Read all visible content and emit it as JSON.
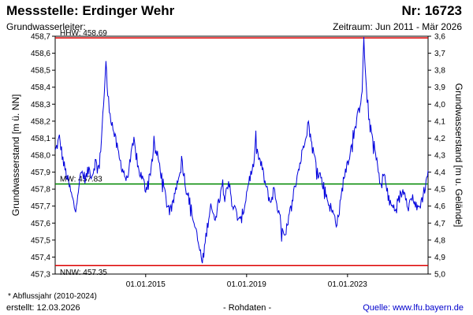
{
  "header": {
    "title": "Messstelle: Erdinger Wehr",
    "number": "Nr: 16723",
    "aquifer": "Grundwasserleiter:",
    "period": "Zeitraum: Jun 2011 - Mär 2026"
  },
  "footer": {
    "footnote": "* Abflussjahr (2010-2024)",
    "created": "erstellt:  12.03.2026",
    "rawdata": "- Rohdaten -",
    "source": "Quelle:  www.lfu.bayern.de"
  },
  "colors": {
    "series": "#0000dd",
    "hhw": "#dd0000",
    "nnw": "#dd0000",
    "mw": "#008800",
    "axis": "#000000"
  },
  "chart_data": {
    "type": "line",
    "ylabel": "Grundwasserstand [m ü. NN]",
    "y2label": "Grundwasserstand [m u. Gelände]",
    "ylim": [
      457.3,
      458.7
    ],
    "y2lim": [
      5.0,
      3.6
    ],
    "xlim": [
      "2011-06-01",
      "2026-03-12"
    ],
    "y_ticks": [
      "457,3",
      "457,4",
      "457,5",
      "457,6",
      "457,7",
      "457,8",
      "457,9",
      "458,0",
      "458,1",
      "458,2",
      "458,3",
      "458,4",
      "458,5",
      "458,6",
      "458,7"
    ],
    "y2_ticks": [
      "5,0",
      "4,9",
      "4,8",
      "4,7",
      "4,6",
      "4,5",
      "4,4",
      "4,3",
      "4,2",
      "4,1",
      "4,0",
      "3,9",
      "3,8",
      "3,7",
      "3,6"
    ],
    "x_ticks": [
      {
        "date": "2015-01-01",
        "label": "01.01.2015"
      },
      {
        "date": "2019-01-01",
        "label": "01.01.2019"
      },
      {
        "date": "2023-01-01",
        "label": "01.01.2023"
      }
    ],
    "reference_lines": [
      {
        "name": "HHW",
        "label": "HHW: 458.69",
        "value": 458.69,
        "color": "#dd0000"
      },
      {
        "name": "MW",
        "label": "MW: 457.83",
        "value": 457.83,
        "color": "#008800"
      },
      {
        "name": "NNW",
        "label": "NNW: 457.35",
        "value": 457.35,
        "color": "#dd0000"
      }
    ],
    "series": [
      {
        "points": [
          [
            "2011-06-01",
            458.02
          ],
          [
            "2011-08-01",
            458.1
          ],
          [
            "2011-10-01",
            457.95
          ],
          [
            "2011-12-01",
            457.85
          ],
          [
            "2012-02-01",
            457.75
          ],
          [
            "2012-03-15",
            457.68
          ],
          [
            "2012-05-01",
            457.8
          ],
          [
            "2012-06-15",
            457.9
          ],
          [
            "2012-08-15",
            457.86
          ],
          [
            "2012-10-01",
            457.92
          ],
          [
            "2012-11-15",
            457.88
          ],
          [
            "2013-01-01",
            457.96
          ],
          [
            "2013-03-01",
            457.92
          ],
          [
            "2013-05-01",
            458.3
          ],
          [
            "2013-06-05",
            458.54
          ],
          [
            "2013-07-01",
            458.35
          ],
          [
            "2013-08-15",
            458.22
          ],
          [
            "2013-10-15",
            458.1
          ],
          [
            "2013-12-15",
            457.98
          ],
          [
            "2014-02-01",
            457.92
          ],
          [
            "2014-04-01",
            457.85
          ],
          [
            "2014-05-15",
            457.95
          ],
          [
            "2014-07-15",
            458.08
          ],
          [
            "2014-09-15",
            457.92
          ],
          [
            "2014-11-15",
            457.86
          ],
          [
            "2015-01-01",
            457.8
          ],
          [
            "2015-03-01",
            457.88
          ],
          [
            "2015-05-01",
            458.05
          ],
          [
            "2015-07-01",
            457.98
          ],
          [
            "2015-09-01",
            457.85
          ],
          [
            "2015-11-01",
            457.72
          ],
          [
            "2016-01-01",
            457.65
          ],
          [
            "2016-03-01",
            457.78
          ],
          [
            "2016-05-01",
            457.9
          ],
          [
            "2016-06-15",
            457.95
          ],
          [
            "2016-08-01",
            457.82
          ],
          [
            "2016-10-01",
            457.72
          ],
          [
            "2016-12-01",
            457.6
          ],
          [
            "2017-02-01",
            457.48
          ],
          [
            "2017-03-15",
            457.4
          ],
          [
            "2017-04-01",
            457.36
          ],
          [
            "2017-06-01",
            457.55
          ],
          [
            "2017-08-01",
            457.72
          ],
          [
            "2017-09-15",
            457.62
          ],
          [
            "2017-11-01",
            457.68
          ],
          [
            "2018-01-01",
            457.82
          ],
          [
            "2018-03-01",
            457.78
          ],
          [
            "2018-04-15",
            457.85
          ],
          [
            "2018-06-01",
            457.72
          ],
          [
            "2018-08-01",
            457.66
          ],
          [
            "2018-10-01",
            457.6
          ],
          [
            "2018-12-01",
            457.7
          ],
          [
            "2019-02-01",
            457.85
          ],
          [
            "2019-04-01",
            457.92
          ],
          [
            "2019-05-15",
            458.05
          ],
          [
            "2019-06-15",
            458.0
          ],
          [
            "2019-08-15",
            457.92
          ],
          [
            "2019-10-15",
            457.8
          ],
          [
            "2019-12-15",
            457.72
          ],
          [
            "2020-02-01",
            457.8
          ],
          [
            "2020-04-01",
            457.68
          ],
          [
            "2020-06-01",
            457.55
          ],
          [
            "2020-07-15",
            457.5
          ],
          [
            "2020-09-01",
            457.62
          ],
          [
            "2020-11-01",
            457.75
          ],
          [
            "2021-01-01",
            457.88
          ],
          [
            "2021-03-01",
            457.98
          ],
          [
            "2021-05-01",
            458.12
          ],
          [
            "2021-06-15",
            458.18
          ],
          [
            "2021-08-01",
            458.06
          ],
          [
            "2021-10-01",
            457.95
          ],
          [
            "2021-12-01",
            457.88
          ],
          [
            "2022-02-01",
            457.8
          ],
          [
            "2022-04-01",
            457.72
          ],
          [
            "2022-06-01",
            457.66
          ],
          [
            "2022-08-01",
            457.6
          ],
          [
            "2022-09-15",
            457.7
          ],
          [
            "2022-11-01",
            457.85
          ],
          [
            "2023-01-01",
            457.96
          ],
          [
            "2023-03-01",
            458.05
          ],
          [
            "2023-05-15",
            458.2
          ],
          [
            "2023-07-01",
            458.3
          ],
          [
            "2023-08-01",
            458.4
          ],
          [
            "2023-08-25",
            458.68
          ],
          [
            "2023-10-01",
            458.38
          ],
          [
            "2023-11-15",
            458.18
          ],
          [
            "2024-01-01",
            458.1
          ],
          [
            "2024-03-01",
            457.95
          ],
          [
            "2024-05-01",
            457.82
          ],
          [
            "2024-06-15",
            457.9
          ],
          [
            "2024-08-01",
            457.75
          ],
          [
            "2024-10-01",
            457.7
          ],
          [
            "2024-12-01",
            457.68
          ],
          [
            "2025-02-01",
            457.76
          ],
          [
            "2025-04-01",
            457.8
          ],
          [
            "2025-06-01",
            457.7
          ],
          [
            "2025-08-01",
            457.76
          ],
          [
            "2025-10-01",
            457.68
          ],
          [
            "2025-12-01",
            457.72
          ],
          [
            "2026-02-01",
            457.82
          ],
          [
            "2026-03-12",
            457.91
          ]
        ]
      }
    ]
  }
}
